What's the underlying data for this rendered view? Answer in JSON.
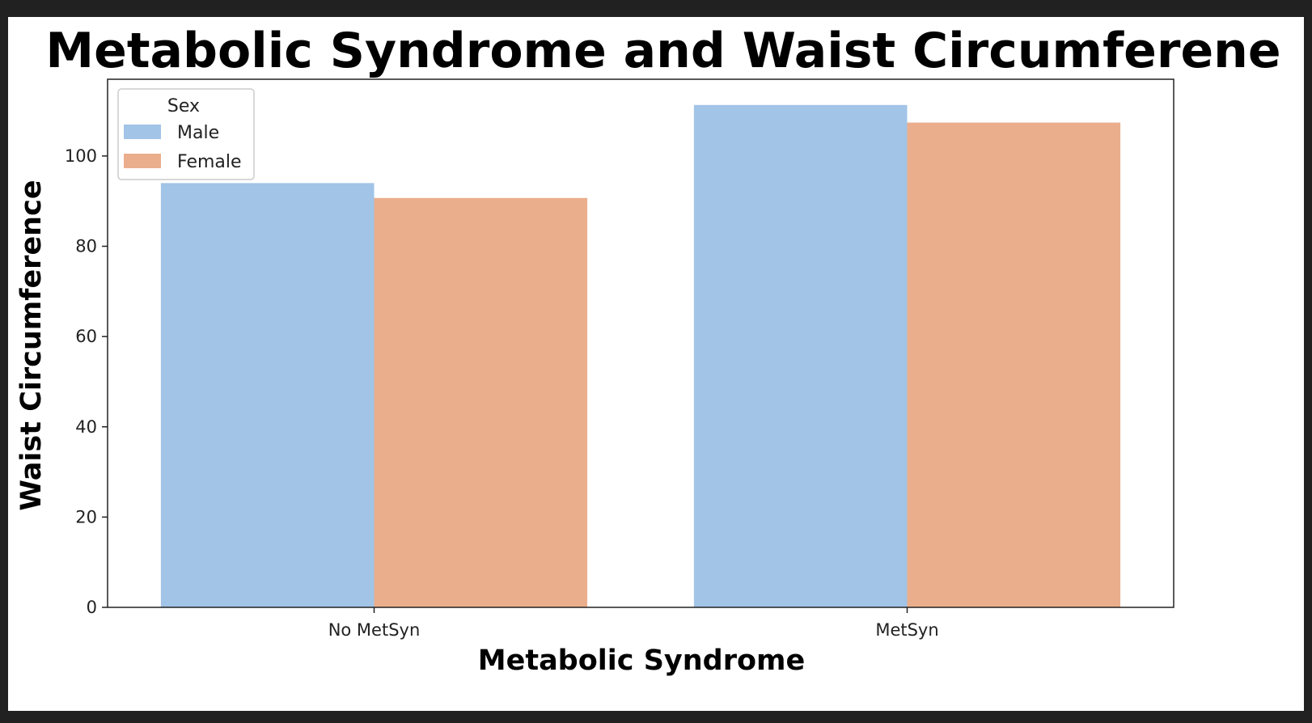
{
  "chart_data": {
    "type": "bar",
    "title": "Metabolic Syndrome and Waist Circumferene",
    "xlabel": "Metabolic Syndrome",
    "ylabel": "Waist Circumference",
    "categories": [
      "No MetSyn",
      "MetSyn"
    ],
    "series": [
      {
        "name": "Male",
        "values": [
          94.0,
          111.3
        ],
        "color": "#a1c4e7"
      },
      {
        "name": "Female",
        "values": [
          90.7,
          107.4
        ],
        "color": "#ebae8c"
      }
    ],
    "ylim": [
      0,
      117
    ],
    "yticks": [
      0,
      20,
      40,
      60,
      80,
      100
    ],
    "legend": {
      "title": "Sex",
      "position": "top-left"
    },
    "grid": false
  }
}
